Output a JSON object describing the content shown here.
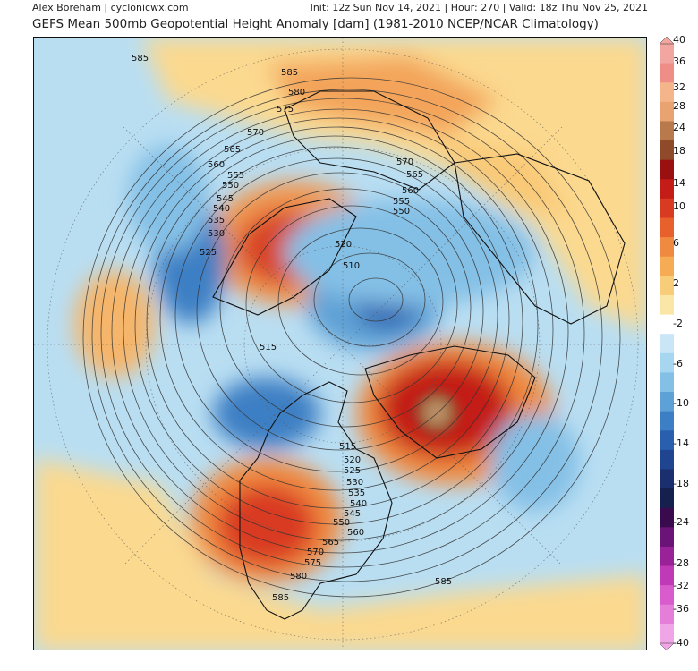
{
  "header": {
    "author": "Alex Boreham | cyclonicwx.com",
    "run_info": "Init: 12z Sun Nov 14, 2021 | Hour: 270 | Valid: 18z Thu Nov 25, 2021",
    "title": "GEFS Mean 500mb Geopotential Height Anomaly [dam] (1981-2010 NCEP/NCAR Climatology)"
  },
  "colorbar": {
    "ticks": [
      "40",
      "36",
      "32",
      "28",
      "24",
      "18",
      "14",
      "10",
      "6",
      "2",
      "-2",
      "-6",
      "-10",
      "-14",
      "-18",
      "-24",
      "-28",
      "-32",
      "-36",
      "-40"
    ],
    "colors": [
      "#f2a6a0",
      "#ee8e86",
      "#f4b58a",
      "#e8a371",
      "#b87a4c",
      "#8e4a29",
      "#9a1010",
      "#c41d18",
      "#d93a22",
      "#e8602c",
      "#f08a40",
      "#f5ac55",
      "#f8cd7a",
      "#fbe6a8",
      "#ffffff",
      "#c9e6f6",
      "#a7d6f0",
      "#84c0e6",
      "#5ea1d6",
      "#3d7fc4",
      "#2a5fae",
      "#1f4590",
      "#1b2f6e",
      "#16204f",
      "#3a0a4f",
      "#6a1478",
      "#9a2299",
      "#c03ab8",
      "#d85ccc",
      "#e47ed8",
      "#f0a6e6"
    ]
  },
  "map_labels": {
    "h_top": [
      "585",
      "580",
      "575",
      "570",
      "565",
      "560",
      "555",
      "550",
      "545",
      "540",
      "535",
      "530",
      "525"
    ],
    "h_bottom": [
      "515",
      "520",
      "525",
      "530",
      "535",
      "540",
      "545",
      "550",
      "555",
      "560",
      "565",
      "570",
      "575",
      "580",
      "585"
    ],
    "h_right": [
      "570",
      "565",
      "560",
      "555",
      "550"
    ],
    "h_center": [
      "520",
      "510",
      "515"
    ]
  }
}
